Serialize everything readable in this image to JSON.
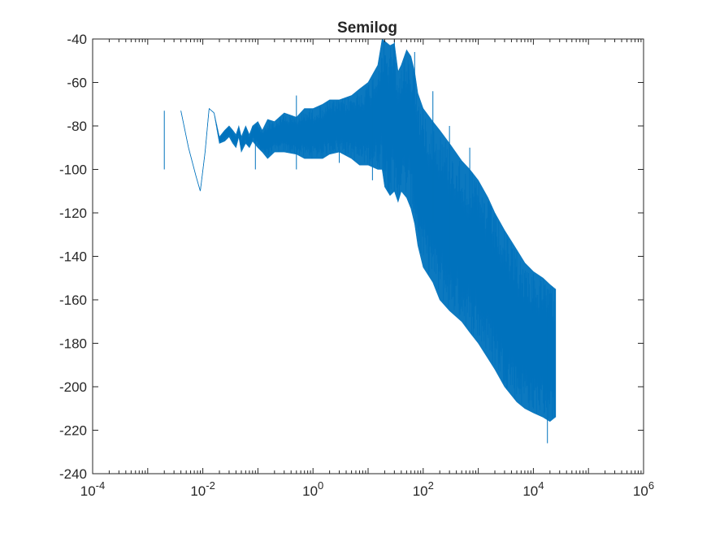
{
  "chart_data": {
    "type": "line",
    "title": "Semilog",
    "xlabel": "",
    "ylabel": "",
    "x_scale": "log",
    "xlim": [
      0.0001,
      1000000
    ],
    "ylim": [
      -240,
      -40
    ],
    "grid": false,
    "legend": "none",
    "x_ticks": [
      {
        "value": 0.0001,
        "base": "10",
        "exp": "-4"
      },
      {
        "value": 0.01,
        "base": "10",
        "exp": "-2"
      },
      {
        "value": 1,
        "base": "10",
        "exp": "0"
      },
      {
        "value": 100,
        "base": "10",
        "exp": "2"
      },
      {
        "value": 10000,
        "base": "10",
        "exp": "4"
      },
      {
        "value": 1000000,
        "base": "10",
        "exp": "6"
      }
    ],
    "y_ticks": [
      {
        "value": -40,
        "label": "-40"
      },
      {
        "value": -60,
        "label": "-60"
      },
      {
        "value": -80,
        "label": "-80"
      },
      {
        "value": -100,
        "label": "-100"
      },
      {
        "value": -120,
        "label": "-120"
      },
      {
        "value": -140,
        "label": "-140"
      },
      {
        "value": -160,
        "label": "-160"
      },
      {
        "value": -180,
        "label": "-180"
      },
      {
        "value": -200,
        "label": "-200"
      },
      {
        "value": -220,
        "label": "-220"
      },
      {
        "value": -240,
        "label": "-240"
      }
    ],
    "series": [
      {
        "color": "#0072BD",
        "x": [
          0.004,
          0.0055,
          0.0075,
          0.009,
          0.011,
          0.013,
          0.016,
          0.02,
          0.025,
          0.03,
          0.035,
          0.04,
          0.045,
          0.05,
          0.06,
          0.07,
          0.08,
          0.1,
          0.12,
          0.15,
          0.2,
          0.3,
          0.5,
          0.7,
          1,
          1.5,
          2,
          3,
          5,
          7,
          10,
          15,
          18,
          20,
          25,
          30,
          35,
          40,
          50,
          60,
          70,
          80,
          100,
          150,
          200,
          300,
          500,
          700,
          1000,
          1500,
          2000,
          3000,
          5000,
          7000,
          10000,
          15000,
          20000,
          25000
        ],
        "y_upper": [
          -73,
          -90,
          -103,
          -110,
          -92,
          -72,
          -74,
          -85,
          -82,
          -80,
          -82,
          -84,
          -80,
          -85,
          -80,
          -84,
          -80,
          -78,
          -82,
          -77,
          -78,
          -74,
          -76,
          -72,
          -72,
          -70,
          -68,
          -68,
          -66,
          -63,
          -60,
          -52,
          -40,
          -41,
          -43,
          -42,
          -55,
          -52,
          -45,
          -48,
          -55,
          -65,
          -72,
          -78,
          -82,
          -88,
          -96,
          -100,
          -105,
          -113,
          -120,
          -128,
          -137,
          -143,
          -147,
          -150,
          -153,
          -155
        ],
        "y_lower": [
          -73,
          -90,
          -103,
          -110,
          -92,
          -72,
          -74,
          -88,
          -87,
          -85,
          -88,
          -90,
          -85,
          -92,
          -88,
          -90,
          -87,
          -90,
          -92,
          -95,
          -92,
          -92,
          -93,
          -95,
          -95,
          -95,
          -93,
          -92,
          -95,
          -98,
          -98,
          -100,
          -100,
          -108,
          -112,
          -110,
          -115,
          -110,
          -113,
          -118,
          -125,
          -135,
          -145,
          -152,
          -160,
          -165,
          -170,
          -175,
          -180,
          -187,
          -192,
          -200,
          -207,
          -210,
          -212,
          -214,
          -216,
          -214
        ],
        "y_spikes": [
          [
            0.002,
            -100,
            -73
          ],
          [
            0.09,
            -100,
            -80
          ],
          [
            0.5,
            -100,
            -66
          ],
          [
            3,
            -97,
            -70
          ],
          [
            12,
            -105,
            -62
          ],
          [
            30,
            -110,
            -40
          ],
          [
            70,
            -110,
            -46
          ],
          [
            150,
            -125,
            -64
          ],
          [
            300,
            -160,
            -80
          ],
          [
            700,
            -168,
            -90
          ],
          [
            2000,
            -182,
            -120
          ],
          [
            5000,
            -200,
            -138
          ],
          [
            10000,
            -210,
            -148
          ],
          [
            18000,
            -226,
            -155
          ]
        ]
      }
    ]
  }
}
